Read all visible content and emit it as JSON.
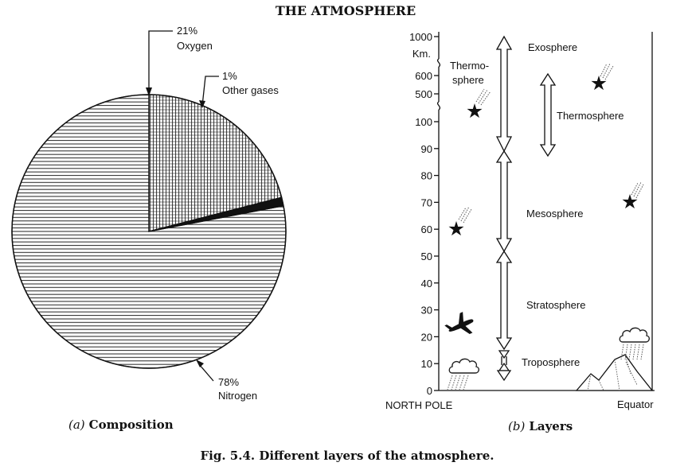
{
  "title": "THE ATMOSPHERE",
  "caption": "Fig. 5.4. Different layers of the atmosphere.",
  "composition": {
    "label_letter": "(a)",
    "label_text": "Composition",
    "slices": [
      {
        "percent": "21%",
        "name": "Oxygen",
        "value": 21,
        "pattern": "grid"
      },
      {
        "percent": "1%",
        "name": "Other gases",
        "value": 1,
        "pattern": "solid"
      },
      {
        "percent": "78%",
        "name": "Nitrogen",
        "value": 78,
        "pattern": "horizontal"
      }
    ]
  },
  "layers": {
    "label_letter": "(b)",
    "label_text": "Layers",
    "km_label": "Km.",
    "ticks_upper": [
      "1000",
      "600",
      "500"
    ],
    "ticks_lower": [
      "100",
      "90",
      "80",
      "70",
      "60",
      "50",
      "40",
      "30",
      "20",
      "10",
      "0"
    ],
    "left_label": "NORTH POLE",
    "right_label": "Equator",
    "pole_layers": {
      "troposphere": "Troposphere",
      "stratosphere": "Stratosphere",
      "mesosphere": "Mesosphere",
      "exosphere": "Exosphere"
    },
    "equator_thermosphere": "Thermosphere",
    "pole_thermosphere_line1": "Thermo-",
    "pole_thermosphere_line2": "sphere"
  }
}
